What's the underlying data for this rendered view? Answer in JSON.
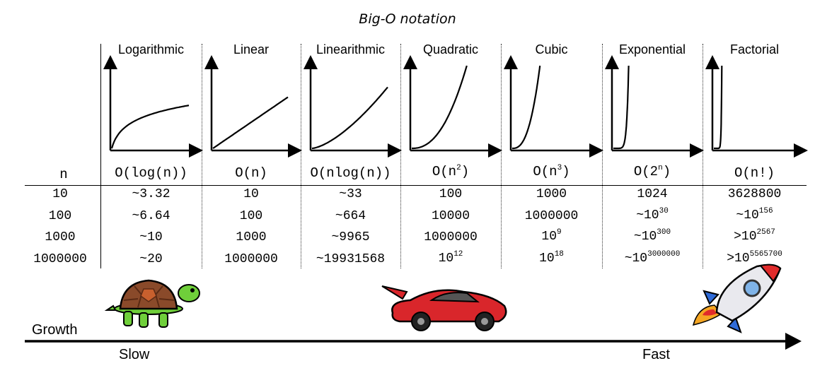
{
  "title": "Big-O notation",
  "n_label": "n",
  "columns": [
    {
      "name": "Logarithmic",
      "formula_base": "O(log(n))",
      "formula_sup": "",
      "formula_tail": "",
      "values": [
        {
          "b": "~3.32",
          "s": ""
        },
        {
          "b": "~6.64",
          "s": ""
        },
        {
          "b": "~10",
          "s": ""
        },
        {
          "b": "~20",
          "s": ""
        }
      ]
    },
    {
      "name": "Linear",
      "formula_base": "O(n)",
      "formula_sup": "",
      "formula_tail": "",
      "values": [
        {
          "b": "10",
          "s": ""
        },
        {
          "b": "100",
          "s": ""
        },
        {
          "b": "1000",
          "s": ""
        },
        {
          "b": "1000000",
          "s": ""
        }
      ]
    },
    {
      "name": "Linearithmic",
      "formula_base": "O(nlog(n))",
      "formula_sup": "",
      "formula_tail": "",
      "values": [
        {
          "b": "~33",
          "s": ""
        },
        {
          "b": "~664",
          "s": ""
        },
        {
          "b": "~9965",
          "s": ""
        },
        {
          "b": "~19931568",
          "s": ""
        }
      ]
    },
    {
      "name": "Quadratic",
      "formula_base": "O(n",
      "formula_sup": "2",
      "formula_tail": ")",
      "values": [
        {
          "b": "100",
          "s": ""
        },
        {
          "b": "10000",
          "s": ""
        },
        {
          "b": "1000000",
          "s": ""
        },
        {
          "b": "10",
          "s": "12"
        }
      ]
    },
    {
      "name": "Cubic",
      "formula_base": "O(n",
      "formula_sup": "3",
      "formula_tail": ")",
      "values": [
        {
          "b": "1000",
          "s": ""
        },
        {
          "b": "1000000",
          "s": ""
        },
        {
          "b": "10",
          "s": "9"
        },
        {
          "b": "10",
          "s": "18"
        }
      ]
    },
    {
      "name": "Exponential",
      "formula_base": "O(2",
      "formula_sup": "n",
      "formula_tail": ")",
      "values": [
        {
          "b": "1024",
          "s": ""
        },
        {
          "b": "~10",
          "s": "30"
        },
        {
          "b": "~10",
          "s": "300"
        },
        {
          "b": "~10",
          "s": "3000000"
        }
      ]
    },
    {
      "name": "Factorial",
      "formula_base": "O(n!)",
      "formula_sup": "",
      "formula_tail": "",
      "values": [
        {
          "b": "3628800",
          "s": ""
        },
        {
          "b": "~10",
          "s": "156"
        },
        {
          "b": ">10",
          "s": "2567"
        },
        {
          "b": ">10",
          "s": "5565700"
        }
      ]
    }
  ],
  "row_labels": [
    "10",
    "100",
    "1000",
    "1000000"
  ],
  "growth_label": "Growth",
  "slow_label": "Slow",
  "fast_label": "Fast",
  "illustrations": [
    "turtle",
    "sports-car",
    "rocket"
  ]
}
